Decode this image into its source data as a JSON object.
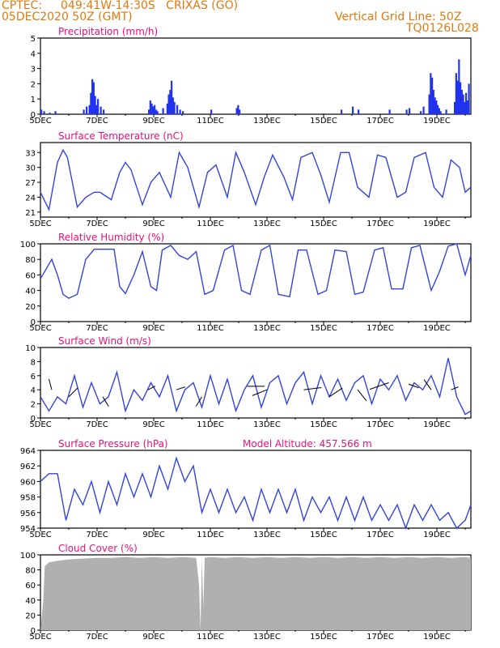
{
  "header": {
    "source": "CPTEC:",
    "location": "049:41W-14:30S   CRIXAS (GO)",
    "run": "05DEC2020 50Z (GMT)",
    "grid_note": "Vertical Grid Line: 50Z",
    "product": "TQ0126L028"
  },
  "x_ticks": [
    "5DEC",
    "7DEC",
    "9DEC",
    "11DEC",
    "13DEC",
    "15DEC",
    "17DEC",
    "19DEC"
  ],
  "colors": {
    "line": "#3344dd",
    "bar": "#2233ee",
    "cloud": "#b0b0b0",
    "title": "#e8107a",
    "header": "#e07a10"
  },
  "chart_data": [
    {
      "id": "precip",
      "type": "bar",
      "title": "Precipitation (mm/h)",
      "xlabel": "",
      "ylabel": "",
      "x_unit": "days since 5DEC",
      "xlim": [
        0,
        15.2
      ],
      "ylim": [
        0,
        5
      ],
      "yticks": [
        0,
        1,
        2,
        3,
        4,
        5
      ],
      "x": [
        0.0,
        0.1,
        0.3,
        0.5,
        1.5,
        1.6,
        1.7,
        1.75,
        1.8,
        1.85,
        1.9,
        1.95,
        2.0,
        2.1,
        2.2,
        3.8,
        3.85,
        3.9,
        3.95,
        4.0,
        4.05,
        4.1,
        4.3,
        4.45,
        4.5,
        4.55,
        4.6,
        4.65,
        4.7,
        4.8,
        4.9,
        5.0,
        6.0,
        6.9,
        6.95,
        7.0,
        10.6,
        11.0,
        11.2,
        12.3,
        12.9,
        13.0,
        13.4,
        13.5,
        13.7,
        13.75,
        13.8,
        13.85,
        13.9,
        13.95,
        14.0,
        14.05,
        14.1,
        14.3,
        14.6,
        14.65,
        14.7,
        14.75,
        14.8,
        14.85,
        14.9,
        14.95,
        15.0,
        15.05,
        15.1
      ],
      "values": [
        0.3,
        0.2,
        0.1,
        0.2,
        0.3,
        0.5,
        0.6,
        1.4,
        2.3,
        2.1,
        1.2,
        0.6,
        1.0,
        0.5,
        0.3,
        0.3,
        0.9,
        0.7,
        0.5,
        0.6,
        0.3,
        0.2,
        0.4,
        0.7,
        1.3,
        1.6,
        2.2,
        1.1,
        0.8,
        0.6,
        0.3,
        0.2,
        0.3,
        0.4,
        0.6,
        0.3,
        0.3,
        0.5,
        0.3,
        0.3,
        0.3,
        0.4,
        0.2,
        0.5,
        1.3,
        2.7,
        2.4,
        1.6,
        1.1,
        0.9,
        0.6,
        0.4,
        0.2,
        0.3,
        0.8,
        2.7,
        2.2,
        3.6,
        2.1,
        1.6,
        1.3,
        0.8,
        1.4,
        0.9,
        2.0
      ]
    },
    {
      "id": "temp",
      "type": "line",
      "title": "Surface Temperature (nC)",
      "xlabel": "",
      "ylabel": "",
      "x_unit": "days since 5DEC",
      "xlim": [
        0,
        15.2
      ],
      "ylim": [
        20,
        35
      ],
      "yticks": [
        21,
        24,
        27,
        30,
        33
      ],
      "x": [
        0,
        0.3,
        0.6,
        0.8,
        0.95,
        1.3,
        1.6,
        1.9,
        2.1,
        2.5,
        2.8,
        3.0,
        3.2,
        3.6,
        3.9,
        4.2,
        4.6,
        4.9,
        5.2,
        5.6,
        5.9,
        6.2,
        6.6,
        6.9,
        7.2,
        7.6,
        7.9,
        8.2,
        8.6,
        8.9,
        9.2,
        9.6,
        9.9,
        10.2,
        10.6,
        10.9,
        11.2,
        11.6,
        11.9,
        12.2,
        12.6,
        12.9,
        13.2,
        13.6,
        13.9,
        14.2,
        14.5,
        14.8,
        15.0,
        15.2
      ],
      "y": [
        25,
        21.5,
        31,
        33.5,
        32,
        22,
        24,
        25,
        25,
        23.5,
        29,
        31,
        29.5,
        22.5,
        27,
        29,
        24,
        33,
        30,
        22,
        29,
        30.5,
        24,
        33,
        29,
        22.5,
        28,
        32.5,
        28,
        23.5,
        32,
        33,
        28.5,
        23,
        33,
        33,
        26,
        24,
        32.5,
        32,
        24,
        25,
        32,
        33,
        26,
        24,
        31.5,
        30,
        25,
        26
      ]
    },
    {
      "id": "rh",
      "type": "line",
      "title": "Relative Humidity (%)",
      "xlabel": "",
      "ylabel": "",
      "x_unit": "days since 5DEC",
      "xlim": [
        0,
        15.2
      ],
      "ylim": [
        0,
        100
      ],
      "yticks": [
        0,
        20,
        40,
        60,
        80,
        100
      ],
      "x": [
        0,
        0.4,
        0.6,
        0.8,
        1.0,
        1.3,
        1.6,
        1.9,
        2.1,
        2.6,
        2.8,
        3.0,
        3.3,
        3.6,
        3.9,
        4.1,
        4.3,
        4.6,
        4.9,
        5.2,
        5.5,
        5.8,
        6.1,
        6.5,
        6.8,
        7.1,
        7.4,
        7.8,
        8.1,
        8.4,
        8.8,
        9.1,
        9.4,
        9.8,
        10.1,
        10.4,
        10.8,
        11.1,
        11.4,
        11.8,
        12.1,
        12.4,
        12.8,
        13.1,
        13.4,
        13.8,
        14.1,
        14.4,
        14.7,
        15.0,
        15.2
      ],
      "y": [
        55,
        80,
        60,
        35,
        30,
        35,
        80,
        93,
        93,
        93,
        45,
        36,
        60,
        90,
        45,
        40,
        92,
        98,
        85,
        80,
        90,
        35,
        40,
        92,
        98,
        40,
        35,
        92,
        98,
        35,
        32,
        92,
        92,
        35,
        40,
        92,
        90,
        35,
        38,
        92,
        95,
        42,
        42,
        95,
        98,
        40,
        65,
        97,
        100,
        60,
        85
      ]
    },
    {
      "id": "wind",
      "type": "line",
      "title": "Surface Wind (m/s)",
      "xlabel": "",
      "ylabel": "",
      "x_unit": "days since 5DEC",
      "xlim": [
        0,
        15.2
      ],
      "ylim": [
        0,
        10
      ],
      "yticks": [
        0,
        2,
        4,
        6,
        8,
        10
      ],
      "x": [
        0,
        0.3,
        0.6,
        0.9,
        1.2,
        1.5,
        1.8,
        2.1,
        2.4,
        2.7,
        3.0,
        3.3,
        3.6,
        3.9,
        4.2,
        4.5,
        4.8,
        5.1,
        5.4,
        5.7,
        6.0,
        6.3,
        6.6,
        6.9,
        7.2,
        7.5,
        7.8,
        8.1,
        8.4,
        8.7,
        9.0,
        9.3,
        9.6,
        9.9,
        10.2,
        10.5,
        10.8,
        11.1,
        11.4,
        11.7,
        12.0,
        12.3,
        12.6,
        12.9,
        13.2,
        13.5,
        13.8,
        14.1,
        14.4,
        14.7,
        15.0,
        15.2
      ],
      "y": [
        3,
        1,
        3,
        2,
        6,
        1.5,
        5,
        2,
        3,
        6.5,
        1,
        4,
        2.5,
        5,
        3,
        6,
        1,
        4,
        5,
        1.5,
        6,
        2,
        5.5,
        1,
        4,
        6,
        1.5,
        5,
        6,
        2,
        5,
        6.5,
        2,
        6,
        3,
        5.5,
        2.5,
        5,
        6,
        2,
        5.5,
        4,
        6,
        2.5,
        5,
        4,
        6,
        3,
        8.5,
        3,
        0.5,
        1
      ],
      "vectors_note": "wind direction arrows"
    },
    {
      "id": "press",
      "type": "line",
      "title": "Surface Pressure (hPa)",
      "subtitle": "Model Altitude: 457.566  m",
      "xlabel": "",
      "ylabel": "",
      "x_unit": "days since 5DEC",
      "xlim": [
        0,
        15.2
      ],
      "ylim": [
        954,
        964
      ],
      "yticks": [
        954,
        956,
        958,
        960,
        962,
        964
      ],
      "x": [
        0,
        0.3,
        0.6,
        0.9,
        1.2,
        1.5,
        1.8,
        2.1,
        2.4,
        2.7,
        3.0,
        3.3,
        3.6,
        3.9,
        4.2,
        4.5,
        4.8,
        5.1,
        5.4,
        5.7,
        6.0,
        6.3,
        6.6,
        6.9,
        7.2,
        7.5,
        7.8,
        8.1,
        8.4,
        8.7,
        9.0,
        9.3,
        9.6,
        9.9,
        10.2,
        10.5,
        10.8,
        11.1,
        11.4,
        11.7,
        12.0,
        12.3,
        12.6,
        12.9,
        13.2,
        13.5,
        13.8,
        14.1,
        14.4,
        14.7,
        15.0,
        15.2
      ],
      "y": [
        960,
        961,
        961,
        955,
        959,
        957,
        960,
        956,
        960,
        957,
        961,
        958,
        961,
        958,
        962,
        959,
        963,
        960,
        962,
        956,
        959,
        956,
        959,
        956,
        958,
        955,
        959,
        956,
        959,
        956,
        959,
        955,
        958,
        956,
        958,
        955,
        958,
        955,
        958,
        955,
        957,
        955,
        957,
        954,
        957,
        955,
        957,
        955,
        956,
        954,
        955,
        957
      ]
    },
    {
      "id": "cloud",
      "type": "area",
      "title": "Cloud Cover (%)",
      "xlabel": "",
      "ylabel": "",
      "x_unit": "days since 5DEC",
      "xlim": [
        0,
        15.2
      ],
      "ylim": [
        0,
        100
      ],
      "yticks": [
        0,
        20,
        40,
        60,
        80,
        100
      ],
      "x": [
        0,
        0.1,
        0.15,
        0.3,
        0.6,
        1.0,
        1.5,
        2.0,
        2.5,
        3.0,
        3.5,
        4.0,
        4.5,
        5.0,
        5.5,
        5.6,
        5.65,
        5.7,
        5.75,
        5.8,
        6.0,
        6.5,
        7.0,
        7.5,
        8.0,
        8.5,
        9.0,
        9.5,
        10.0,
        10.5,
        11.0,
        11.5,
        12.0,
        12.5,
        13.0,
        13.5,
        14.0,
        14.5,
        15.0,
        15.2
      ],
      "y": [
        0,
        40,
        85,
        90,
        92,
        94,
        95,
        96,
        96,
        97,
        96,
        97,
        96,
        97,
        96,
        60,
        0,
        95,
        30,
        96,
        97,
        96,
        97,
        96,
        97,
        96,
        97,
        96,
        97,
        96,
        97,
        96,
        97,
        96,
        97,
        96,
        97,
        96,
        97,
        96
      ]
    }
  ]
}
